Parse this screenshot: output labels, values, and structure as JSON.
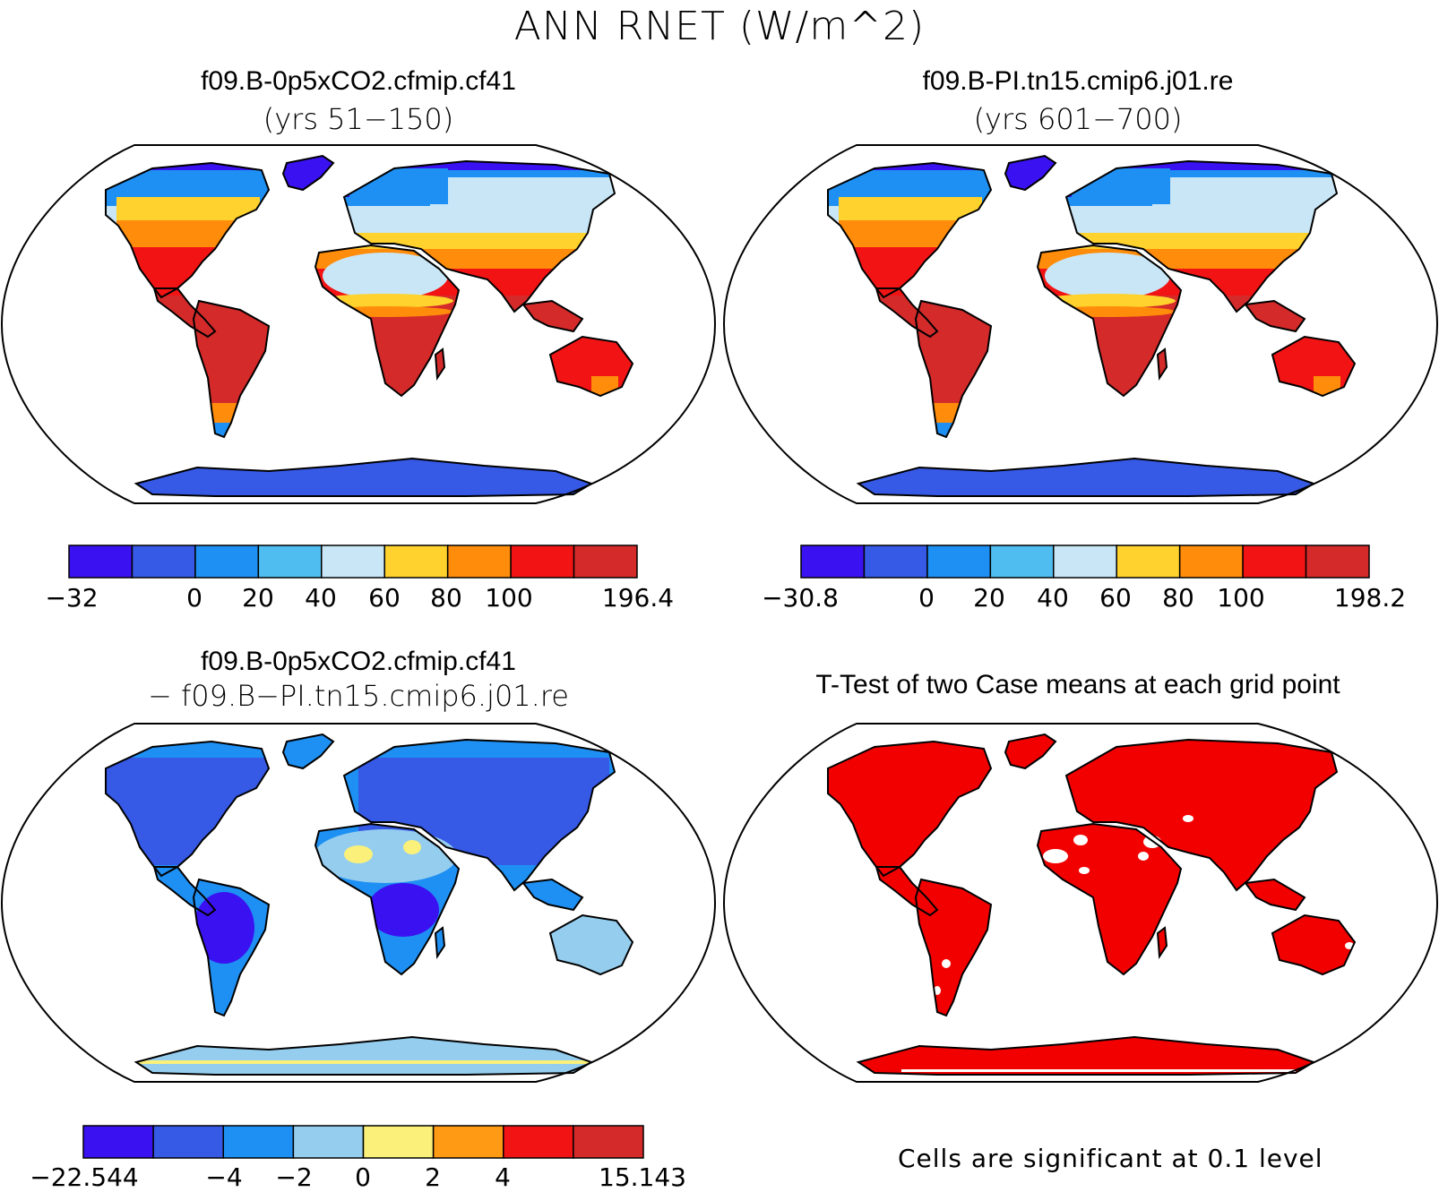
{
  "title": "ANN RNET (W/m^2)",
  "panels": {
    "top_left": {
      "title": "f09.B-0p5xCO2.cfmip.cf41",
      "subtitle": "(yrs 51−150)",
      "colorbar": {
        "colors": [
          "#3a12f2",
          "#3659e6",
          "#1e90f3",
          "#4fbdef",
          "#c8e6f6",
          "#ffd22e",
          "#ff8c0a",
          "#f21414",
          "#d42a2a"
        ],
        "ticks": [
          "−32",
          "0",
          "20",
          "40",
          "60",
          "80",
          "100",
          "196.4"
        ]
      }
    },
    "top_right": {
      "title": "f09.B-PI.tn15.cmip6.j01.re",
      "subtitle": "(yrs 601−700)",
      "colorbar": {
        "colors": [
          "#3a12f2",
          "#3659e6",
          "#1e90f3",
          "#4fbdef",
          "#c8e6f6",
          "#ffd22e",
          "#ff8c0a",
          "#f21414",
          "#d42a2a"
        ],
        "ticks": [
          "−30.8",
          "0",
          "20",
          "40",
          "60",
          "80",
          "100",
          "198.2"
        ]
      }
    },
    "bottom_left": {
      "title": "f09.B-0p5xCO2.cfmip.cf41",
      "subtitle": "− f09.B−PI.tn15.cmip6.j01.re",
      "colorbar": {
        "colors": [
          "#3a12f2",
          "#3659e6",
          "#1e90f3",
          "#94cdee",
          "#faf07a",
          "#ff9a14",
          "#f21414",
          "#d42a2a"
        ],
        "ticks": [
          "−22.544",
          "−4",
          "−2",
          "0",
          "2",
          "4",
          "15.143"
        ]
      }
    },
    "bottom_right": {
      "title": "T-Test of two Case means at each grid point",
      "note": "Cells are significant at 0.1 level",
      "significant_color": "#f20000"
    }
  },
  "map_palettes": {
    "case": {
      "polar": "#3a12f2",
      "antarctic": "#3659e6",
      "boreal": "#1e90f3",
      "subarctic": "#c8e6f6",
      "midlat": "#ffd22e",
      "warm": "#ff8c0a",
      "tropical": "#f21414",
      "deep_tropic": "#d42a2a",
      "desert": "#c8e6f6"
    },
    "diff": {
      "land": "#3659e6",
      "cold": "#3a12f2",
      "mid": "#1e90f3",
      "light": "#94cdee",
      "yellow": "#faf07a"
    }
  }
}
